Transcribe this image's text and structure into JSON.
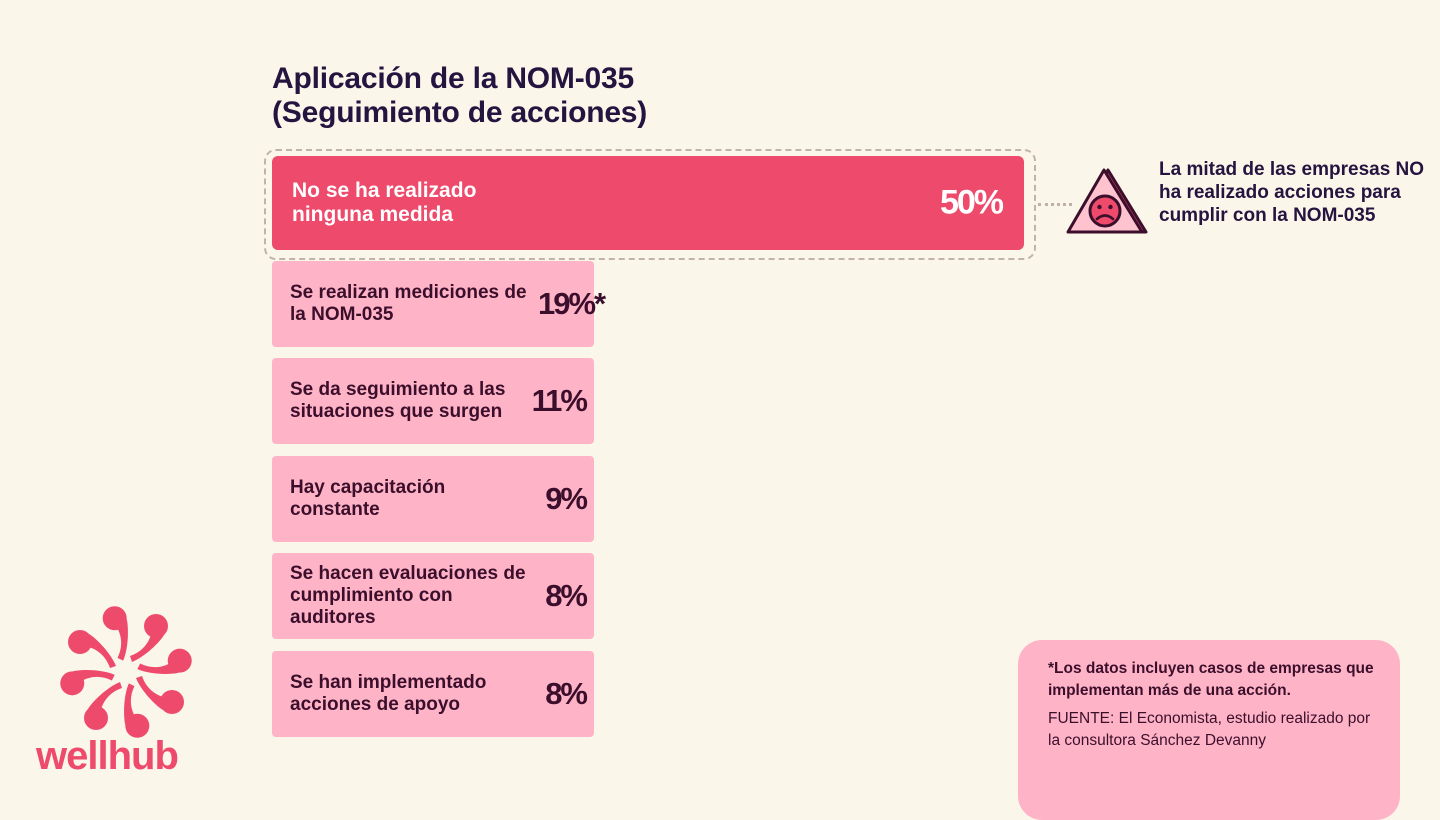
{
  "title_line1": "Aplicación de la NOM-035",
  "title_line2": "(Seguimiento de acciones)",
  "chart_data": {
    "type": "bar",
    "orientation": "horizontal",
    "title": "Aplicación de la NOM-035 (Seguimiento de acciones)",
    "categories": [
      "No se ha realizado ninguna medida",
      "Se realizan mediciones de la NOM-035",
      "Se da seguimiento a las situaciones que surgen",
      "Hay capacitación constante",
      "Se hacen evaluaciones de cumplimiento con auditores",
      "Se han implementado acciones de apoyo"
    ],
    "values": [
      50,
      19,
      11,
      9,
      8,
      8
    ],
    "value_labels": [
      "50%",
      "19%*",
      "11%",
      "9%",
      "8%",
      "8%"
    ],
    "unit": "%",
    "highlighted_index": 0,
    "colors": {
      "highlight": "#ee4a6c",
      "bar": "#ffb3c6",
      "text_on_highlight": "#ffffff",
      "text": "#3b0f2c"
    }
  },
  "callout": {
    "icon": "sad-face-warning-icon",
    "text": "La mitad de las empresas NO ha realizado acciones para cumplir con la NOM-035"
  },
  "note": {
    "footnote": "*Los datos incluyen casos de empresas que implementan más de una acción.",
    "source": "FUENTE: El Economista, estudio realizado por la consultora Sánchez Devanny"
  },
  "brand": {
    "logo_text": "wellhub",
    "color": "#ee4a6c",
    "background": "#faf6ea"
  }
}
